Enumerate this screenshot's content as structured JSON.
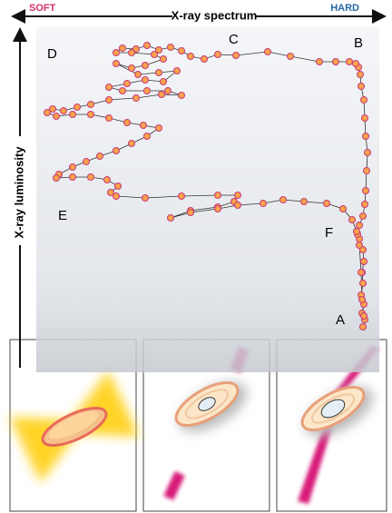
{
  "header": {
    "spectrum_axis": "X-ray spectrum",
    "soft": "SOFT",
    "hard": "HARD",
    "luminosity_axis": "X-ray luminosity"
  },
  "states": [
    "A",
    "B",
    "C",
    "D",
    "E",
    "F"
  ]
}
